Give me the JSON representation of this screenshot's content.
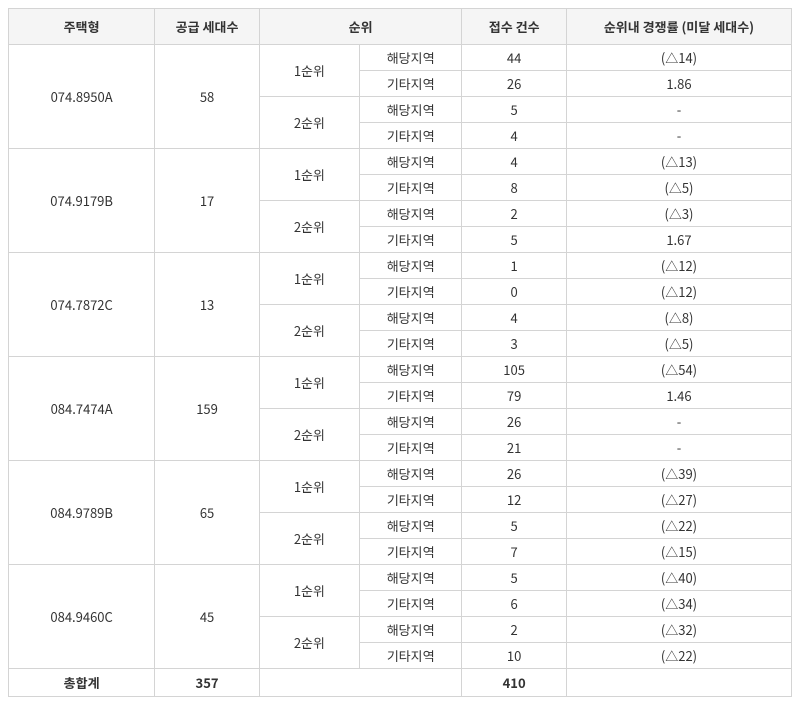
{
  "headers": {
    "type": "주택형",
    "supply": "공급 세대수",
    "rank": "순위",
    "applications": "접수 건수",
    "ratio": "순위내 경쟁률 (미달 세대수)"
  },
  "rankLabels": {
    "rank1": "1순위",
    "rank2": "2순위",
    "local": "해당지역",
    "other": "기타지역"
  },
  "groups": [
    {
      "type": "074.8950A",
      "supply": "58",
      "rows": [
        {
          "apps": "44",
          "ratio": "(△14)"
        },
        {
          "apps": "26",
          "ratio": "1.86"
        },
        {
          "apps": "5",
          "ratio": "-"
        },
        {
          "apps": "4",
          "ratio": "-"
        }
      ]
    },
    {
      "type": "074.9179B",
      "supply": "17",
      "rows": [
        {
          "apps": "4",
          "ratio": "(△13)"
        },
        {
          "apps": "8",
          "ratio": "(△5)"
        },
        {
          "apps": "2",
          "ratio": "(△3)"
        },
        {
          "apps": "5",
          "ratio": "1.67"
        }
      ]
    },
    {
      "type": "074.7872C",
      "supply": "13",
      "rows": [
        {
          "apps": "1",
          "ratio": "(△12)"
        },
        {
          "apps": "0",
          "ratio": "(△12)"
        },
        {
          "apps": "4",
          "ratio": "(△8)"
        },
        {
          "apps": "3",
          "ratio": "(△5)"
        }
      ]
    },
    {
      "type": "084.7474A",
      "supply": "159",
      "rows": [
        {
          "apps": "105",
          "ratio": "(△54)"
        },
        {
          "apps": "79",
          "ratio": "1.46"
        },
        {
          "apps": "26",
          "ratio": "-"
        },
        {
          "apps": "21",
          "ratio": "-"
        }
      ]
    },
    {
      "type": "084.9789B",
      "supply": "65",
      "rows": [
        {
          "apps": "26",
          "ratio": "(△39)"
        },
        {
          "apps": "12",
          "ratio": "(△27)"
        },
        {
          "apps": "5",
          "ratio": "(△22)"
        },
        {
          "apps": "7",
          "ratio": "(△15)"
        }
      ]
    },
    {
      "type": "084.9460C",
      "supply": "45",
      "rows": [
        {
          "apps": "5",
          "ratio": "(△40)"
        },
        {
          "apps": "6",
          "ratio": "(△34)"
        },
        {
          "apps": "2",
          "ratio": "(△32)"
        },
        {
          "apps": "10",
          "ratio": "(△22)"
        }
      ]
    }
  ],
  "footer": {
    "label": "총합계",
    "supply": "357",
    "rank": "",
    "apps": "410",
    "ratio": ""
  }
}
